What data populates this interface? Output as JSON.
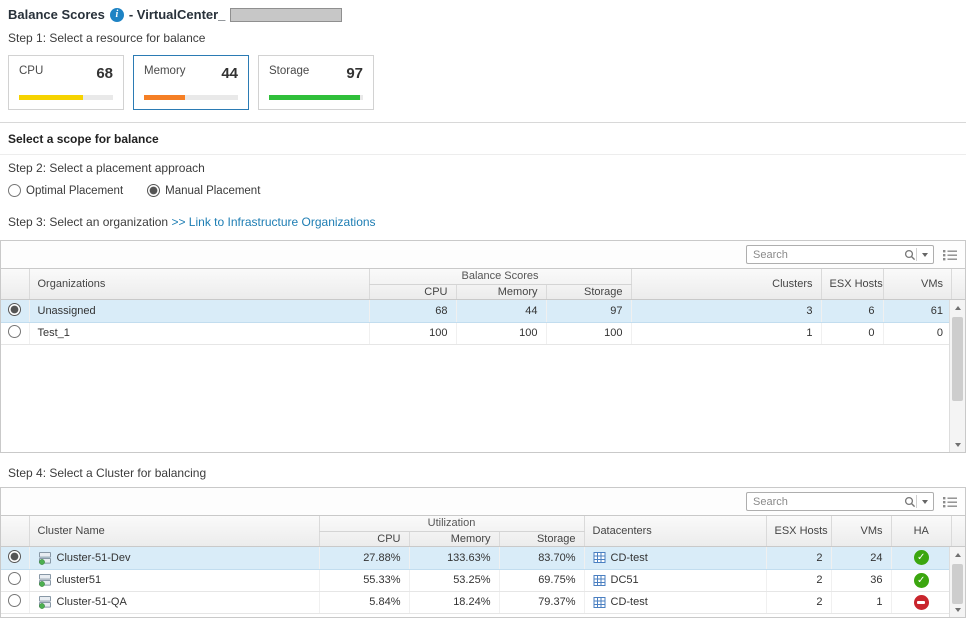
{
  "page": {
    "title": "Balance Scores",
    "subtitle": "- VirtualCenter_"
  },
  "step1": {
    "label": "Step 1: Select a resource for balance"
  },
  "resource_cards": [
    {
      "label": "CPU",
      "score": "68",
      "percent": 68,
      "bar_color": "#f6d300",
      "selected": false
    },
    {
      "label": "Memory",
      "score": "44",
      "percent": 44,
      "bar_color": "#f57f25",
      "selected": true
    },
    {
      "label": "Storage",
      "score": "97",
      "percent": 97,
      "bar_color": "#2fbf3a",
      "selected": false
    }
  ],
  "scope": {
    "title": "Select a scope for balance"
  },
  "step2": {
    "label": "Step 2: Select a placement approach",
    "options": [
      {
        "label": "Optimal Placement",
        "selected": false
      },
      {
        "label": "Manual Placement",
        "selected": true
      }
    ]
  },
  "step3": {
    "label": "Step 3: Select an organization",
    "link": ">> Link to Infrastructure Organizations"
  },
  "org_table": {
    "search": {
      "placeholder": "Search"
    },
    "headers": {
      "organizations": "Organizations",
      "group": "Balance Scores",
      "cpu": "CPU",
      "memory": "Memory",
      "storage": "Storage",
      "clusters": "Clusters",
      "esx_hosts": "ESX Hosts",
      "vms": "VMs"
    },
    "rows": [
      {
        "name": "Unassigned",
        "cpu": "68",
        "memory": "44",
        "storage": "97",
        "clusters": "3",
        "esx_hosts": "6",
        "vms": "61",
        "selected": true
      },
      {
        "name": "Test_1",
        "cpu": "100",
        "memory": "100",
        "storage": "100",
        "clusters": "1",
        "esx_hosts": "0",
        "vms": "0",
        "selected": false
      }
    ]
  },
  "step4": {
    "label": "Step 4: Select a Cluster for balancing"
  },
  "cluster_table": {
    "search": {
      "placeholder": "Search"
    },
    "headers": {
      "cluster_name": "Cluster Name",
      "group": "Utilization",
      "cpu": "CPU",
      "memory": "Memory",
      "storage": "Storage",
      "datacenters": "Datacenters",
      "esx_hosts": "ESX Hosts",
      "vms": "VMs",
      "ha": "HA"
    },
    "rows": [
      {
        "name": "Cluster-51-Dev",
        "cpu": "27.88%",
        "memory": "133.63%",
        "storage": "83.70%",
        "datacenter": "CD-test",
        "esx_hosts": "2",
        "vms": "24",
        "ha": "ok",
        "selected": true
      },
      {
        "name": "cluster51",
        "cpu": "55.33%",
        "memory": "53.25%",
        "storage": "69.75%",
        "datacenter": "DC51",
        "esx_hosts": "2",
        "vms": "36",
        "ha": "ok",
        "selected": false
      },
      {
        "name": "Cluster-51-QA",
        "cpu": "5.84%",
        "memory": "18.24%",
        "storage": "79.37%",
        "datacenter": "CD-test",
        "esx_hosts": "2",
        "vms": "1",
        "ha": "error",
        "selected": false
      }
    ]
  }
}
